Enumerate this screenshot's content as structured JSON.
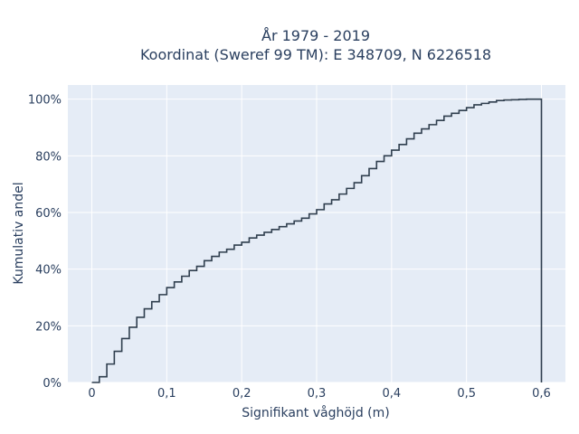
{
  "chart_data": {
    "type": "line",
    "style": "step (empirical CDF)",
    "title_line1": "År 1979 - 2019",
    "title_line2": "Koordinat (Sweref 99 TM): E 348709, N 6226518",
    "xlabel": "Signifikant våghöjd (m)",
    "ylabel": "Kumulativ andel",
    "xlim": [
      -0.032,
      0.632
    ],
    "ylim": [
      0,
      1.05
    ],
    "x_ticks": [
      0,
      0.1,
      0.2,
      0.3,
      0.4,
      0.5,
      0.6
    ],
    "x_tick_labels": [
      "0",
      "0,1",
      "0,2",
      "0,3",
      "0,4",
      "0,5",
      "0,6"
    ],
    "y_ticks": [
      0,
      0.2,
      0.4,
      0.6,
      0.8,
      1.0
    ],
    "y_tick_labels": [
      "0%",
      "20%",
      "40%",
      "60%",
      "80%",
      "100%"
    ],
    "grid": true,
    "plot_background": "#e5ecf6",
    "grid_color": "#ffffff",
    "line_color": "#2f3e4e",
    "x": [
      0,
      0.01,
      0.02,
      0.03,
      0.04,
      0.05,
      0.06,
      0.07,
      0.08,
      0.09,
      0.1,
      0.11,
      0.12,
      0.13,
      0.14,
      0.15,
      0.16,
      0.17,
      0.18,
      0.19,
      0.2,
      0.21,
      0.22,
      0.23,
      0.24,
      0.25,
      0.26,
      0.27,
      0.28,
      0.29,
      0.3,
      0.31,
      0.32,
      0.33,
      0.34,
      0.35,
      0.36,
      0.37,
      0.38,
      0.39,
      0.4,
      0.41,
      0.42,
      0.43,
      0.44,
      0.45,
      0.46,
      0.47,
      0.48,
      0.49,
      0.5,
      0.51,
      0.52,
      0.53,
      0.54,
      0.55,
      0.56,
      0.57,
      0.58,
      0.59,
      0.6
    ],
    "y": [
      0.0,
      0.02,
      0.065,
      0.11,
      0.155,
      0.195,
      0.23,
      0.26,
      0.285,
      0.31,
      0.335,
      0.355,
      0.375,
      0.395,
      0.41,
      0.43,
      0.445,
      0.46,
      0.47,
      0.485,
      0.495,
      0.51,
      0.52,
      0.53,
      0.54,
      0.55,
      0.56,
      0.57,
      0.58,
      0.595,
      0.61,
      0.63,
      0.645,
      0.665,
      0.685,
      0.705,
      0.73,
      0.755,
      0.78,
      0.8,
      0.82,
      0.84,
      0.86,
      0.88,
      0.895,
      0.91,
      0.925,
      0.94,
      0.95,
      0.96,
      0.97,
      0.98,
      0.985,
      0.99,
      0.995,
      0.997,
      0.998,
      0.999,
      1.0,
      1.0,
      1.0
    ]
  }
}
